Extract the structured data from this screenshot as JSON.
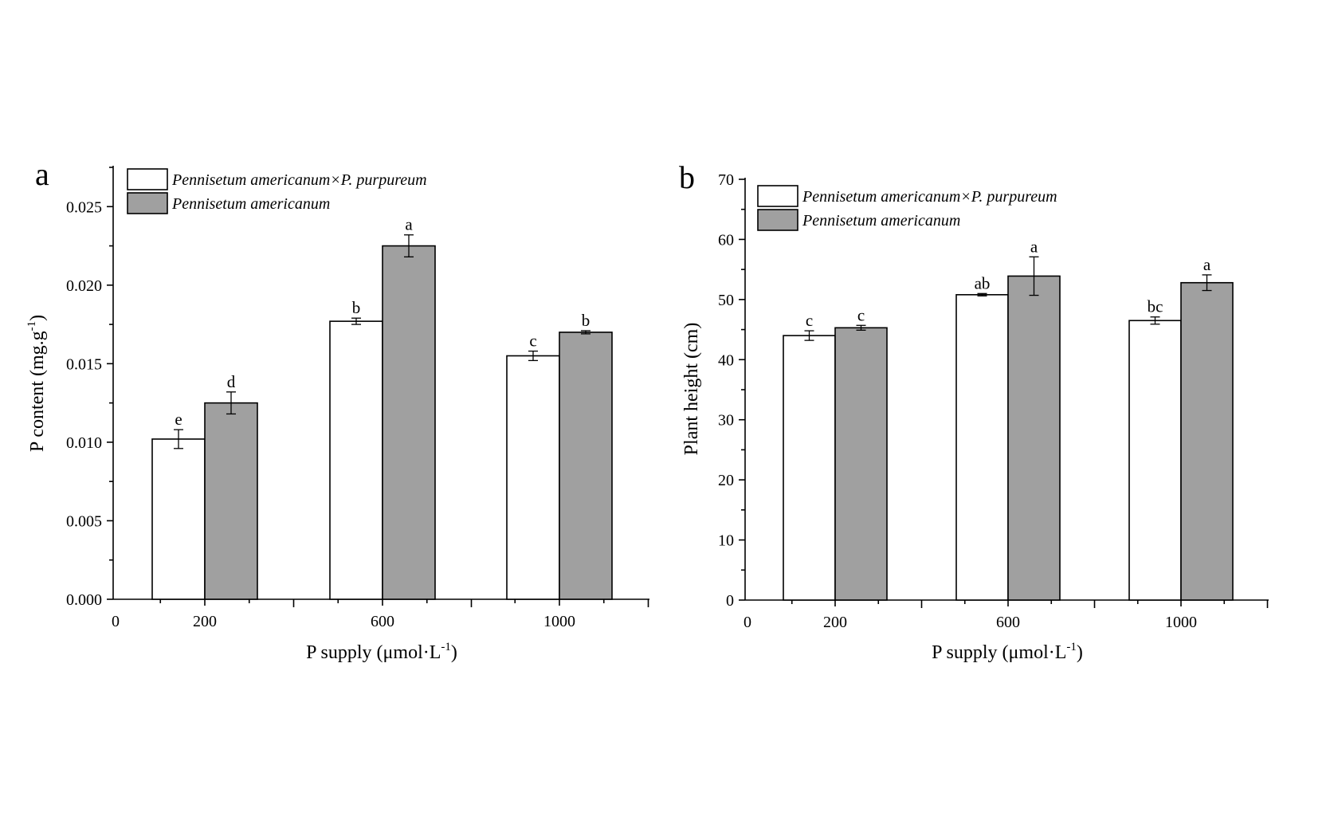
{
  "colors": {
    "series1": "#ffffff",
    "series2": "#a0a0a0",
    "axis": "#000000"
  },
  "chart_data": [
    {
      "type": "bar",
      "panel_label": "a",
      "categories": [
        "200",
        "600",
        "1000"
      ],
      "x_ticks": [
        "0",
        "200",
        "600",
        "1000"
      ],
      "xlabel_main": "P supply (μmol·L",
      "xlabel_sup": "-1",
      "xlabel_end": ")",
      "ylabel_main": "P content (mg.g",
      "ylabel_sup": "-1",
      "ylabel_end": ")",
      "ylim": [
        0,
        0.0275
      ],
      "y_ticks": [
        "0.000",
        "0.005",
        "0.010",
        "0.015",
        "0.020",
        "0.025"
      ],
      "y_tick_values": [
        0,
        0.005,
        0.01,
        0.015,
        0.02,
        0.025
      ],
      "legend_position": "top-left",
      "series": [
        {
          "name": "Pennisetum americanum×P. purpureum",
          "values": [
            0.0102,
            0.0177,
            0.0155
          ],
          "errors": [
            0.0006,
            0.0002,
            0.0003
          ],
          "labels": [
            "e",
            "b",
            "c"
          ]
        },
        {
          "name": "Pennisetum americanum",
          "values": [
            0.0125,
            0.0225,
            0.017
          ],
          "errors": [
            0.0007,
            0.0007,
            0.0001
          ],
          "labels": [
            "d",
            "a",
            "b"
          ]
        }
      ]
    },
    {
      "type": "bar",
      "panel_label": "b",
      "categories": [
        "200",
        "600",
        "1000"
      ],
      "x_ticks": [
        "0",
        "200",
        "600",
        "1000"
      ],
      "xlabel_main": "P supply (μmol·L",
      "xlabel_sup": "-1",
      "xlabel_end": ")",
      "ylabel_main": "Plant height (cm)",
      "ylabel_sup": "",
      "ylabel_end": "",
      "ylim": [
        0,
        70
      ],
      "y_ticks": [
        "0",
        "10",
        "20",
        "30",
        "40",
        "50",
        "60",
        "70"
      ],
      "y_tick_values": [
        0,
        10,
        20,
        30,
        40,
        50,
        60,
        70
      ],
      "legend_position": "top-left",
      "series": [
        {
          "name": "Pennisetum americanum×P. purpureum",
          "values": [
            44.0,
            50.8,
            46.5
          ],
          "errors": [
            0.8,
            0.2,
            0.6
          ],
          "labels": [
            "c",
            "ab",
            "bc"
          ]
        },
        {
          "name": "Pennisetum americanum",
          "values": [
            45.3,
            53.9,
            52.8
          ],
          "errors": [
            0.4,
            3.2,
            1.3
          ],
          "labels": [
            "c",
            "a",
            "a"
          ]
        }
      ]
    }
  ]
}
